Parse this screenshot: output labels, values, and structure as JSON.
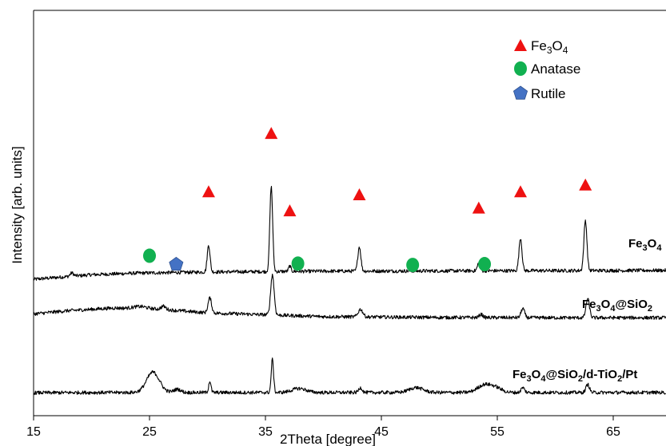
{
  "chart_data": {
    "type": "line",
    "xlabel": "2Theta [degree]",
    "ylabel": "Intensity [arb. units]",
    "xlim": [
      15,
      70
    ],
    "xticks": [
      15,
      25,
      35,
      45,
      55,
      65
    ],
    "grid": false,
    "legend_position": "top-right",
    "legend": [
      {
        "marker": "triangle",
        "color": "#ee1111",
        "base": "Fe",
        "sub1": "3",
        "mid": "O",
        "sub2": "4"
      },
      {
        "marker": "circle",
        "color": "#11b050",
        "label": "Anatase"
      },
      {
        "marker": "pentagon",
        "color": "#4472c4",
        "label": "Rutile"
      }
    ],
    "series": [
      {
        "parts": [
          {
            "t": "Fe"
          },
          {
            "t": "3",
            "sub": true
          },
          {
            "t": "O"
          },
          {
            "t": "4",
            "sub": true
          }
        ],
        "baseline": [
          [
            15,
            0.35
          ],
          [
            17,
            0.42
          ],
          [
            20,
            0.52
          ],
          [
            24,
            0.58
          ],
          [
            30,
            0.62
          ],
          [
            40,
            0.65
          ],
          [
            50,
            0.66
          ],
          [
            60,
            0.67
          ],
          [
            70,
            0.68
          ]
        ],
        "peaks": [
          [
            18.3,
            0.12,
            0.15
          ],
          [
            30.1,
            1.0,
            0.12
          ],
          [
            35.5,
            3.15,
            0.12
          ],
          [
            37.1,
            0.2,
            0.1
          ],
          [
            43.1,
            0.9,
            0.13
          ],
          [
            53.4,
            0.28,
            0.12
          ],
          [
            57.0,
            1.2,
            0.13
          ],
          [
            62.6,
            1.85,
            0.13
          ]
        ]
      },
      {
        "parts": [
          {
            "t": "Fe"
          },
          {
            "t": "3",
            "sub": true
          },
          {
            "t": "O"
          },
          {
            "t": "4",
            "sub": true
          },
          {
            "t": "@SiO"
          },
          {
            "t": "2",
            "sub": true
          }
        ],
        "baseline": [
          [
            15,
            0.28
          ],
          [
            18,
            0.4
          ],
          [
            22,
            0.5
          ],
          [
            26,
            0.45
          ],
          [
            30,
            0.32
          ],
          [
            40,
            0.18
          ],
          [
            50,
            0.15
          ],
          [
            60,
            0.14
          ],
          [
            70,
            0.14
          ]
        ],
        "peaks": [
          [
            24.2,
            0.08,
            0.6
          ],
          [
            26.2,
            0.12,
            0.2
          ],
          [
            30.2,
            0.55,
            0.15
          ],
          [
            35.6,
            1.48,
            0.15
          ],
          [
            43.2,
            0.28,
            0.2
          ],
          [
            53.6,
            0.12,
            0.15
          ],
          [
            57.2,
            0.34,
            0.15
          ],
          [
            62.8,
            0.7,
            0.15
          ]
        ]
      },
      {
        "parts": [
          {
            "t": "Fe"
          },
          {
            "t": "3",
            "sub": true
          },
          {
            "t": "O"
          },
          {
            "t": "4",
            "sub": true
          },
          {
            "t": "@SiO"
          },
          {
            "t": "2",
            "sub": true
          },
          {
            "t": "/d-TiO"
          },
          {
            "t": "2",
            "sub": true
          },
          {
            "t": "/Pt"
          }
        ],
        "baseline": [
          [
            15,
            0.05
          ],
          [
            20,
            0.06
          ],
          [
            30,
            0.06
          ],
          [
            40,
            0.06
          ],
          [
            50,
            0.06
          ],
          [
            60,
            0.06
          ],
          [
            70,
            0.06
          ]
        ],
        "peaks": [
          [
            25.3,
            0.75,
            0.55
          ],
          [
            27.4,
            0.12,
            0.3
          ],
          [
            30.2,
            0.42,
            0.1
          ],
          [
            35.6,
            1.22,
            0.1
          ],
          [
            37.9,
            0.15,
            0.6
          ],
          [
            43.2,
            0.18,
            0.15
          ],
          [
            48.0,
            0.18,
            0.6
          ],
          [
            53.9,
            0.28,
            0.6
          ],
          [
            54.9,
            0.15,
            0.5
          ],
          [
            57.2,
            0.18,
            0.15
          ],
          [
            62.8,
            0.3,
            0.15
          ]
        ]
      }
    ],
    "markers": [
      {
        "type": "triangle",
        "x": 30.1,
        "y": 3.58
      },
      {
        "type": "triangle",
        "x": 35.5,
        "y": 5.73
      },
      {
        "type": "triangle",
        "x": 37.1,
        "y": 2.88
      },
      {
        "type": "triangle",
        "x": 43.1,
        "y": 3.47
      },
      {
        "type": "triangle",
        "x": 53.4,
        "y": 2.98
      },
      {
        "type": "triangle",
        "x": 57.0,
        "y": 3.58
      },
      {
        "type": "triangle",
        "x": 62.6,
        "y": 3.83
      },
      {
        "type": "circle",
        "x": 25.0,
        "y": 1.22
      },
      {
        "type": "circle",
        "x": 37.8,
        "y": 0.93
      },
      {
        "type": "circle",
        "x": 47.7,
        "y": 0.88
      },
      {
        "type": "circle",
        "x": 53.9,
        "y": 0.91
      },
      {
        "type": "pentagon",
        "x": 27.3,
        "y": 0.9
      }
    ]
  }
}
